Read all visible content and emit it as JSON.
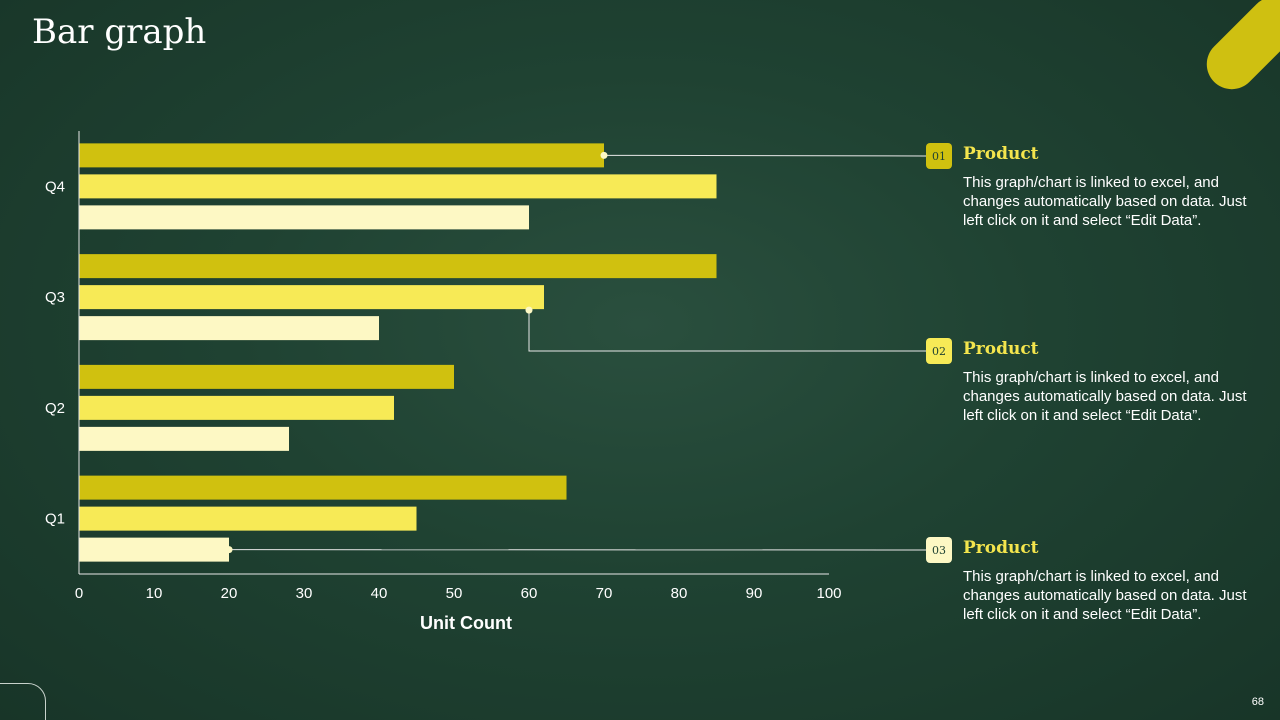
{
  "slide": {
    "title": "Bar graph",
    "page_number": "68"
  },
  "colors": {
    "series_1": "#d0c10f",
    "series_2": "#f7ea56",
    "series_3": "#fdf8c4",
    "axis": "#e8e8e8",
    "leader": "#e8e8e8",
    "accent": "#cfc011"
  },
  "chart_data": {
    "type": "bar",
    "orientation": "horizontal",
    "categories": [
      "Q1",
      "Q2",
      "Q3",
      "Q4"
    ],
    "series": [
      {
        "values": [
          65,
          50,
          85,
          70
        ]
      },
      {
        "values": [
          45,
          42,
          62,
          85
        ]
      },
      {
        "values": [
          20,
          28,
          40,
          60
        ]
      }
    ],
    "xlabel": "Unit Count",
    "ylabel": "",
    "xlim": [
      0,
      100
    ],
    "xticks": [
      0,
      10,
      20,
      30,
      40,
      50,
      60,
      70,
      80,
      90,
      100
    ],
    "grid": false,
    "legend": "none"
  },
  "callouts": [
    {
      "number": "01",
      "title": "Product",
      "text": "This graph/chart is linked to excel, and changes automatically based on data. Just left click on it and select “Edit Data”.",
      "category": "Q4",
      "series_index": 0
    },
    {
      "number": "02",
      "title": "Product",
      "text": "This graph/chart is linked to excel, and changes automatically based on data. Just left click on it and select “Edit Data”.",
      "category": "Q3",
      "series_index": 1
    },
    {
      "number": "03",
      "title": "Product",
      "text": "This graph/chart is linked to excel, and changes automatically based on data. Just left click on it and select “Edit Data”.",
      "category": "Q1",
      "series_index": 2
    }
  ]
}
